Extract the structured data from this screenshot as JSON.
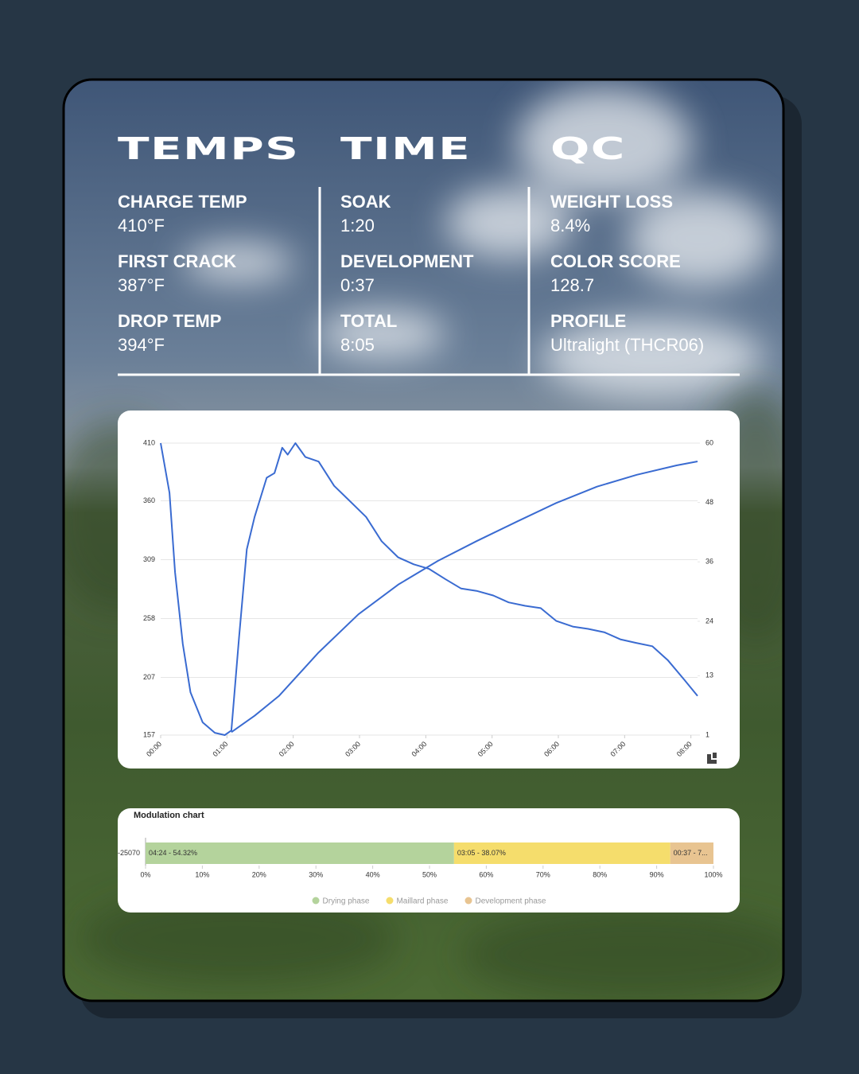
{
  "stats": {
    "columns": [
      {
        "title": "TEMPS",
        "items": [
          {
            "label": "CHARGE TEMP",
            "value": "410°F"
          },
          {
            "label": "FIRST CRACK",
            "value": "387°F"
          },
          {
            "label": "DROP TEMP",
            "value": "394°F"
          }
        ]
      },
      {
        "title": "TIME",
        "items": [
          {
            "label": "SOAK",
            "value": "1:20"
          },
          {
            "label": "DEVELOPMENT",
            "value": "0:37"
          },
          {
            "label": "TOTAL",
            "value": "8:05"
          }
        ]
      },
      {
        "title": "QC",
        "items": [
          {
            "label": "WEIGHT LOSS",
            "value": "8.4%"
          },
          {
            "label": "COLOR SCORE",
            "value": "128.7"
          },
          {
            "label": "PROFILE",
            "value": "Ultralight (THCR06)"
          }
        ]
      }
    ]
  },
  "chart_data": [
    {
      "type": "line",
      "xlim": [
        0,
        486
      ],
      "xticks": [
        {
          "value": 0,
          "label": "00:00"
        },
        {
          "value": 60,
          "label": "01:00"
        },
        {
          "value": 120,
          "label": "02:00"
        },
        {
          "value": 180,
          "label": "03:00"
        },
        {
          "value": 240,
          "label": "04:00"
        },
        {
          "value": 300,
          "label": "05:00"
        },
        {
          "value": 360,
          "label": "06:00"
        },
        {
          "value": 420,
          "label": "07:00"
        },
        {
          "value": 480,
          "label": "08:00"
        }
      ],
      "ylim": [
        157,
        410
      ],
      "yticks": [
        157,
        207,
        258,
        309,
        360,
        410
      ],
      "y2lim": [
        1,
        60
      ],
      "y2ticks": [
        1,
        13,
        24,
        36,
        48,
        60
      ],
      "grid": true,
      "series": [
        {
          "color": "#3a6bd1",
          "x": [
            0,
            8,
            13,
            20,
            27,
            38,
            49,
            58,
            64,
            71,
            78,
            85,
            96,
            103,
            110,
            115,
            122,
            131,
            143,
            157,
            171,
            186,
            200,
            215,
            229,
            243,
            258,
            272,
            286,
            301,
            315,
            330,
            344,
            358,
            373,
            387,
            402,
            416,
            430,
            445,
            459,
            474,
            486
          ],
          "values": [
            410,
            367,
            298,
            236,
            194,
            168,
            159,
            157,
            161,
            242,
            318,
            346,
            380,
            384,
            406,
            400,
            410,
            398,
            394,
            373,
            360,
            346,
            325,
            311,
            305,
            301,
            292,
            284,
            282,
            278,
            272,
            269,
            267,
            256,
            251,
            249,
            246,
            240,
            237,
            234,
            222,
            205,
            191
          ]
        },
        {
          "color": "#3a6bd1",
          "axis": "y2",
          "x": [
            64,
            85,
            107,
            143,
            179,
            215,
            251,
            286,
            323,
            358,
            395,
            431,
            467,
            486
          ],
          "values": [
            1.6,
            4.9,
            8.9,
            17.7,
            25.4,
            31.4,
            36.2,
            40.2,
            44.2,
            47.9,
            51.2,
            53.6,
            55.5,
            56.3
          ]
        }
      ]
    },
    {
      "type": "bar",
      "orientation": "horizontal",
      "stacked": true,
      "title": "Modulation chart",
      "categories": [
        "-25070"
      ],
      "xlim": [
        0,
        100
      ],
      "xticks": [
        {
          "value": 0,
          "label": "0%"
        },
        {
          "value": 10,
          "label": "10%"
        },
        {
          "value": 20,
          "label": "20%"
        },
        {
          "value": 30,
          "label": "30%"
        },
        {
          "value": 40,
          "label": "40%"
        },
        {
          "value": 50,
          "label": "50%"
        },
        {
          "value": 60,
          "label": "60%"
        },
        {
          "value": 70,
          "label": "70%"
        },
        {
          "value": 80,
          "label": "80%"
        },
        {
          "value": 90,
          "label": "90%"
        },
        {
          "value": 100,
          "label": "100%"
        }
      ],
      "legend": "bottom",
      "series": [
        {
          "name": "Drying phase",
          "color": "#b4d39c",
          "values": [
            54.32
          ],
          "value_labels": [
            "04:24 - 54.32%"
          ]
        },
        {
          "name": "Maillard phase",
          "color": "#f5dd6c",
          "values": [
            38.07
          ],
          "value_labels": [
            "03:05 - 38.07%"
          ]
        },
        {
          "name": "Development phase",
          "color": "#e8c491",
          "values": [
            7.61
          ],
          "value_labels": [
            "00:37 - 7..."
          ]
        }
      ]
    }
  ]
}
